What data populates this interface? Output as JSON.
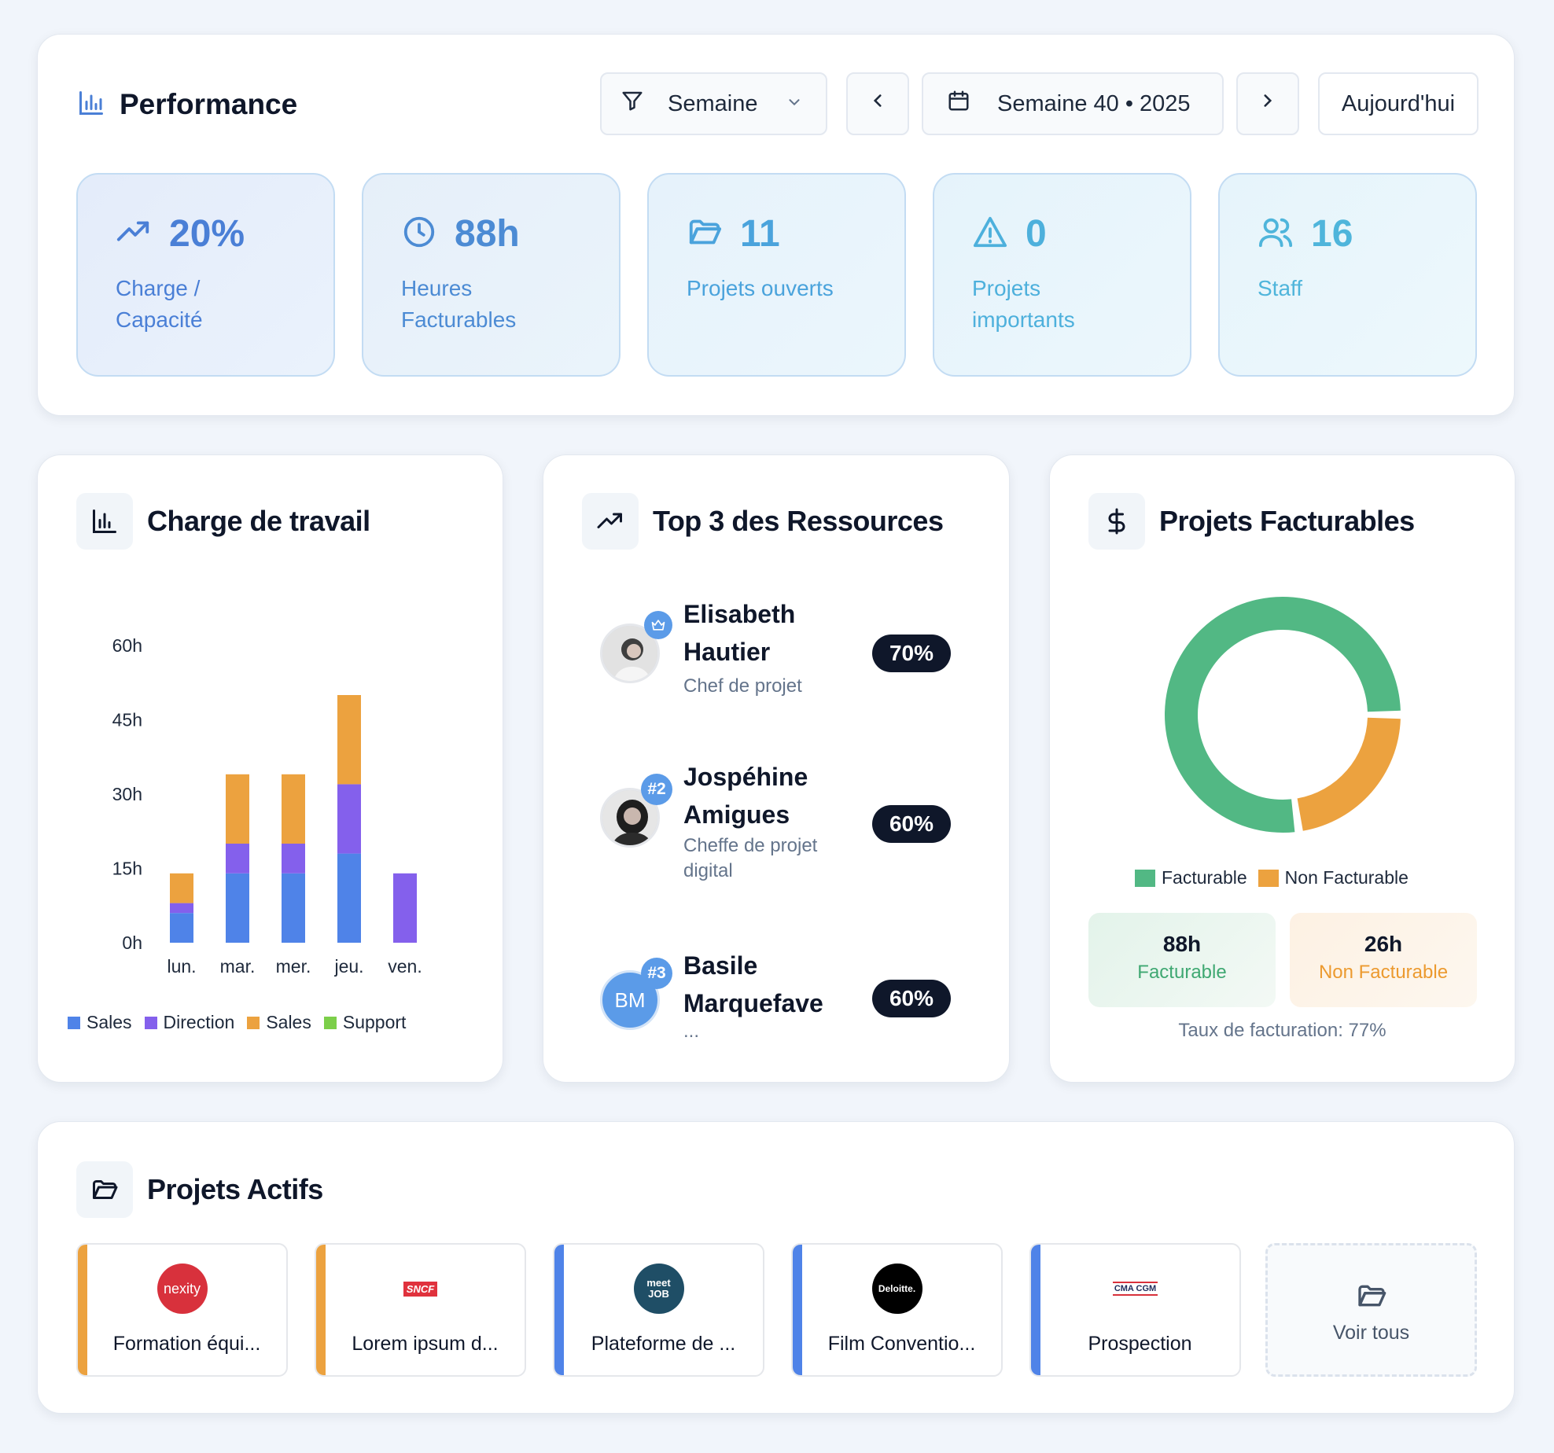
{
  "performance": {
    "title": "Performance",
    "filter_label": "Semaine",
    "week_label": "Semaine 40 • 2025",
    "today_label": "Aujourd'hui",
    "kpis": [
      {
        "value": "20%",
        "label": "Charge / Capacité",
        "icon": "trending-up-icon"
      },
      {
        "value": "88h",
        "label": "Heures Facturables",
        "icon": "clock-icon"
      },
      {
        "value": "11",
        "label": "Projets ouverts",
        "icon": "folder-icon"
      },
      {
        "value": "0",
        "label": "Projets importants",
        "icon": "warning-icon"
      },
      {
        "value": "16",
        "label": "Staff",
        "icon": "users-icon"
      }
    ]
  },
  "workload": {
    "title": "Charge de travail",
    "chart_data": {
      "type": "bar",
      "stacked": true,
      "categories": [
        "lun.",
        "mar.",
        "mer.",
        "jeu.",
        "ven."
      ],
      "y_ticks": [
        "60h",
        "45h",
        "30h",
        "15h",
        "0h"
      ],
      "ylim": [
        0,
        60
      ],
      "series": [
        {
          "name": "Sales",
          "color": "#4f83e8",
          "values": [
            6,
            14,
            14,
            18,
            0
          ]
        },
        {
          "name": "Direction",
          "color": "#8460ec",
          "values": [
            2,
            6,
            6,
            14,
            14
          ]
        },
        {
          "name": "Sales",
          "color": "#eca23f",
          "values": [
            6,
            14,
            14,
            18,
            0
          ]
        },
        {
          "name": "Support",
          "color": "#7ccf4a",
          "values": [
            0,
            0,
            0,
            0,
            0
          ]
        }
      ]
    }
  },
  "top3": {
    "title": "Top 3 des Ressources",
    "resources": [
      {
        "name": "Elisabeth Hautier",
        "role": "Chef de projet",
        "pct": "70%",
        "badge": "crown-icon"
      },
      {
        "name": "Jospéhine Amigues",
        "role": "Cheffe de projet digital",
        "pct": "60%",
        "badge": "#2"
      },
      {
        "name": "Basile Marquefave",
        "role": "...",
        "pct": "60%",
        "badge": "#3",
        "initials": "BM"
      }
    ]
  },
  "billable": {
    "title": "Projets Facturables",
    "chart_data": {
      "type": "pie",
      "donut": true,
      "labels": [
        "Facturable",
        "Non Facturable"
      ],
      "values": [
        88,
        26
      ],
      "colors": [
        "#52b884",
        "#eca23f"
      ]
    },
    "legend": [
      "Facturable",
      "Non Facturable"
    ],
    "facturable_value": "88h",
    "facturable_label": "Facturable",
    "non_facturable_value": "26h",
    "non_facturable_label": "Non Facturable",
    "rate": "Taux de facturation: 77%"
  },
  "projects": {
    "title": "Projets Actifs",
    "items": [
      {
        "name": "Formation équi...",
        "logo": "nexity",
        "accent": "#eca23f"
      },
      {
        "name": "Lorem ipsum d...",
        "logo": "SNCF",
        "accent": "#eca23f"
      },
      {
        "name": "Plateforme de ...",
        "logo": "meet JOB",
        "accent": "#4f83e8"
      },
      {
        "name": "Film Conventio...",
        "logo": "Deloitte.",
        "accent": "#4f83e8"
      },
      {
        "name": "Prospection",
        "logo": "CMA CGM",
        "accent": "#4f83e8"
      }
    ],
    "see_all": "Voir tous"
  }
}
